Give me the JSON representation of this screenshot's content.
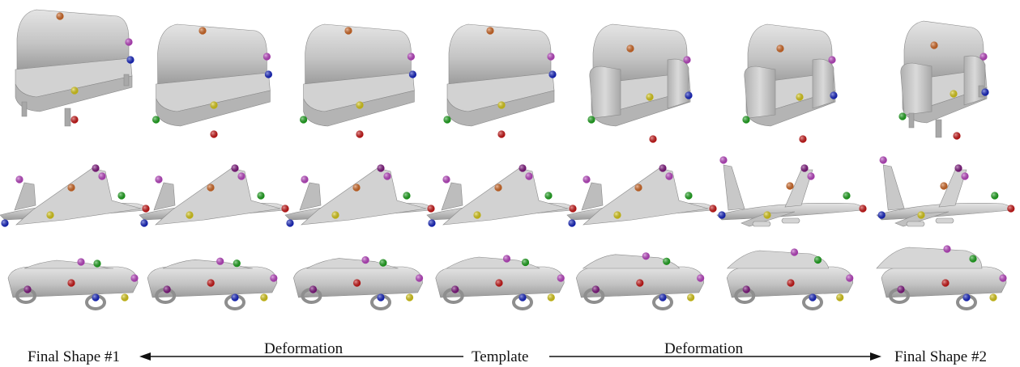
{
  "figure": {
    "labels": {
      "left_end": "Final Shape #1",
      "left_arrow": "Deformation",
      "center": "Template",
      "right_arrow": "Deformation",
      "right_end": "Final Shape #2"
    },
    "rows": [
      "sofa",
      "airplane",
      "car"
    ],
    "columns": 7,
    "keypoint_colors": {
      "red": "#d01010",
      "blue": "#1020c8",
      "green": "#18a818",
      "yellow": "#e0d010",
      "orange": "#d86820",
      "magenta": "#c040c8",
      "purple": "#801080"
    },
    "shape_color": "#c9c9c9"
  }
}
